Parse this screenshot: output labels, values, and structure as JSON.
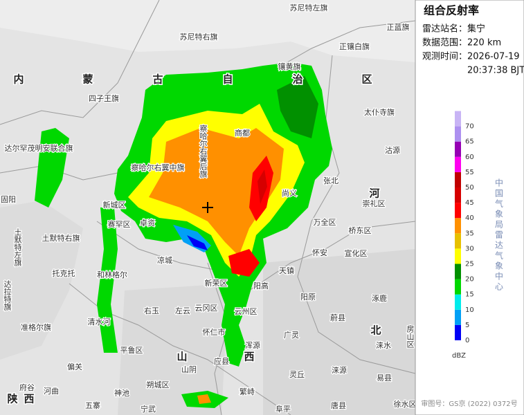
{
  "panel": {
    "title": "组合反射率",
    "fields": [
      {
        "label": "雷达站名：",
        "value": "集宁"
      },
      {
        "label": "数据范围：",
        "value": "220 km"
      },
      {
        "label": "观测时间：",
        "value": "2026-07-19"
      }
    ],
    "time_line2": "20:37:38 BJT",
    "credit": "中国气象局雷达气象中心",
    "review_number": "审图号：GS京 (2022) 0372号"
  },
  "legend": {
    "unit": "dBZ",
    "levels": [
      0,
      5,
      10,
      15,
      20,
      25,
      30,
      35,
      40,
      45,
      50,
      55,
      60,
      65,
      70
    ],
    "colors": [
      "#0000f6",
      "#01a0f6",
      "#00ecec",
      "#00d800",
      "#019000",
      "#ffff00",
      "#e7c000",
      "#ff9000",
      "#ff0000",
      "#d60000",
      "#c00000",
      "#ff00f0",
      "#9600b4",
      "#ad90f0",
      "#c8b4f5"
    ]
  },
  "region_labels": [
    "内",
    "蒙",
    "古",
    "自",
    "治",
    "区",
    "河",
    "北",
    "山",
    "西",
    "陕",
    "西"
  ],
  "place_labels": [
    "苏尼特左旗",
    "正蓝旗",
    "苏尼特右旗",
    "正镶白旗",
    "镶黄旗",
    "四子王旗",
    "太仆寺旗",
    "商都",
    "察哈尔右翼后旗",
    "达尔罕茂明安联合旗",
    "沽源",
    "察哈尔右翼中旗",
    "张北",
    "崇礼区",
    "固阳",
    "尚义",
    "赤城",
    "土默特右旗",
    "土默特左旗",
    "卓资",
    "赛罕区",
    "新城区",
    "万全区",
    "桥东区",
    "怀安",
    "宣化区",
    "凉城",
    "托克托",
    "和林格尔",
    "天镇",
    "怀来",
    "新荣区",
    "阳高",
    "阳原",
    "涿鹿",
    "右玉",
    "左云",
    "云冈区",
    "云州区",
    "蔚县",
    "清水河",
    "准格尔旗",
    "怀仁市",
    "广灵",
    "涞水",
    "房山区",
    "平鲁区",
    "浑源",
    "偏关",
    "山阴",
    "应县",
    "灵丘",
    "涞源",
    "易县",
    "河曲",
    "府谷",
    "朔城区",
    "繁峙",
    "五寨",
    "神池",
    "宁武",
    "阜平",
    "唐县",
    "徐水区",
    "达拉特旗"
  ]
}
